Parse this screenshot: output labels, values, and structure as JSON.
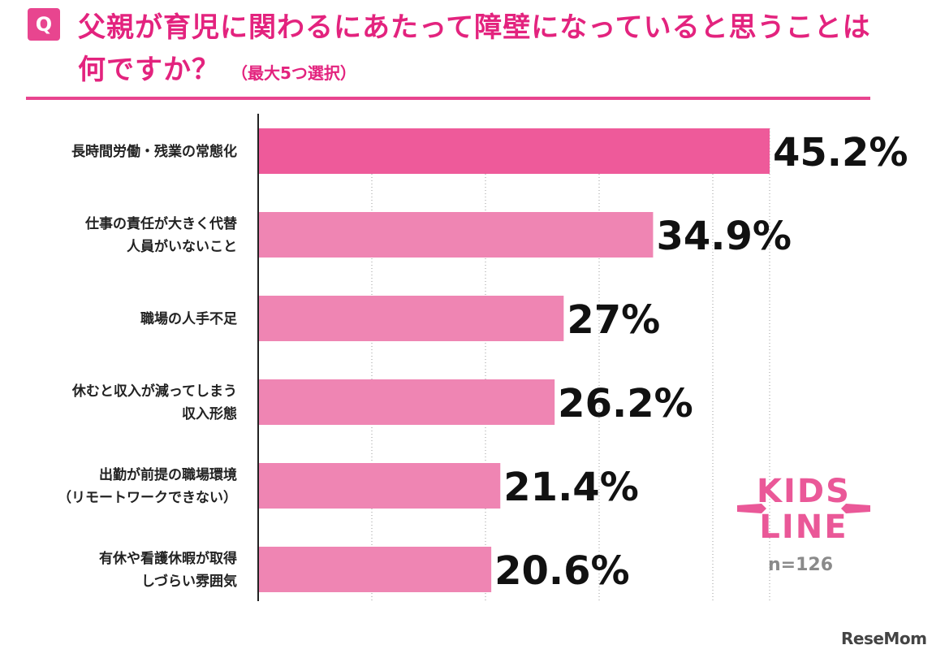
{
  "header": {
    "badge": "Q",
    "title": "父親が育児に関わるにあたって障壁になっていると思うことは何ですか？",
    "subtitle": "（最大5つ選択）"
  },
  "colors": {
    "accent": "#e8458f",
    "highlight_bar": "#ee5a9a",
    "bar": "#ef85b3"
  },
  "chart_data": {
    "type": "bar",
    "orientation": "horizontal",
    "categories": [
      [
        "長時間労働・残業の常態化"
      ],
      [
        "仕事の責任が大きく代替",
        "人員がいないこと"
      ],
      [
        "職場の人手不足"
      ],
      [
        "休むと収入が減ってしまう",
        "収入形態"
      ],
      [
        "出勤が前提の職場環境",
        "（リモートワークできない）"
      ],
      [
        "有休や看護休暇が取得",
        "しづらい雰囲気"
      ]
    ],
    "values": [
      45.2,
      34.9,
      27,
      26.2,
      21.4,
      20.6
    ],
    "value_labels": [
      "45.2%",
      "34.9%",
      "27%",
      "26.2%",
      "21.4%",
      "20.6%"
    ],
    "highlight_index": 0,
    "grid": true,
    "xlim": [
      0,
      45.2
    ]
  },
  "logo_text": [
    "KIDS",
    "LINE"
  ],
  "sample_size": "n=126",
  "watermark": "ReseMom"
}
